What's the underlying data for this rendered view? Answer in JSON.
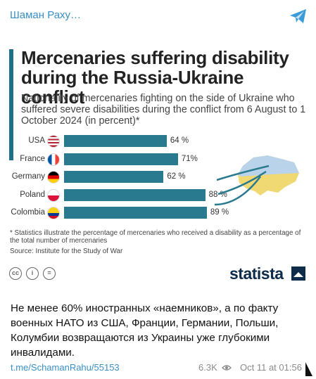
{
  "header": {
    "channel_title": "Шаман Раху…",
    "share_icon": "telegram-plane-icon"
  },
  "infographic": {
    "title": "Mercenaries suffering disability during the Russia-Ukraine conflict",
    "subtitle": "Nationality of mercenaries fighting on the side of Ukraine who suffered severe disabilities during the conflict from 6 August to 1 October 2024 (in percent)*",
    "footnote": "* Statistics illustrate the percentage of mercenaries who received a disability as a percentage of the total number of mercenaries",
    "source": "Source: Institute for the Study of War",
    "brand": "statista",
    "license_icons": [
      "cc-icon",
      "by-icon",
      "nd-icon"
    ],
    "accent_color": "#1f6f8b",
    "bar_color": "#2a7a8f"
  },
  "chart_data": {
    "type": "bar",
    "orientation": "horizontal",
    "categories": [
      "USA",
      "France",
      "Germany",
      "Poland",
      "Colombia"
    ],
    "value_labels": [
      "64 %",
      "71%",
      "62 %",
      "88 %",
      "89 %"
    ],
    "values": [
      64,
      71,
      62,
      88,
      89
    ],
    "xlim": [
      0,
      100
    ],
    "flag_icons": [
      "usa-flag-icon",
      "france-flag-icon",
      "germany-flag-icon",
      "poland-flag-icon",
      "colombia-flag-icon"
    ]
  },
  "message": {
    "text": "Не менее 60% иностранных «наемников», а по факту военных НАТО из США, Франции, Германии, Польши, Колумбии возвращаются из Украины уже глубокими инвалидами.",
    "link": "t.me/SchamanRahu/55153",
    "views": "6.3K",
    "date": "Oct 11 at 01:56"
  }
}
